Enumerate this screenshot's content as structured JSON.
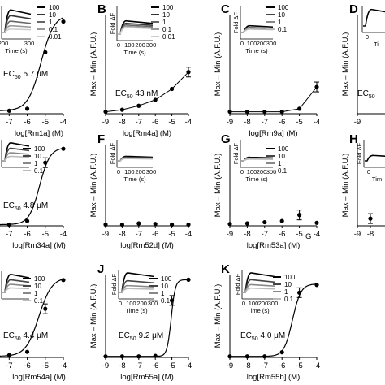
{
  "chart_data": [
    {
      "type": "line",
      "panel_letter": "",
      "xlabel": "log[Rm1a] (M)",
      "ylabel": "",
      "xlim": [
        -7.6,
        -4
      ],
      "ylim": [
        0,
        1
      ],
      "ticks": [
        "-7",
        "-6",
        "-5",
        "-4"
      ],
      "ec50": "5.7 μM",
      "points": [
        {
          "x": -7,
          "y": 0.03
        },
        {
          "x": -6,
          "y": 0.05
        },
        {
          "x": -5,
          "y": 0.62
        },
        {
          "x": -4,
          "y": 0.93
        }
      ],
      "error_index": [],
      "curve": {
        "top": 1.0,
        "bottom": 0.03,
        "logec50": -5.24,
        "hill": 1.2
      },
      "inset": {
        "legend": [
          "100",
          "10",
          "1",
          "0.1",
          "0.01"
        ],
        "series": [
          {
            "level": 1.0,
            "shade": "#000000"
          },
          {
            "level": 0.75,
            "shade": "#333333"
          },
          {
            "level": 0.5,
            "shade": "#666666"
          },
          {
            "level": 0.3,
            "shade": "#999999"
          },
          {
            "level": 0.15,
            "shade": "#cccccc"
          }
        ],
        "xticks": [
          "200",
          "300"
        ],
        "xlabel": "Time (s)",
        "ylabel": ""
      }
    },
    {
      "type": "line",
      "panel_letter": "B",
      "xlabel": "log[Rm4a] (M)",
      "ylabel": "Max – Min (A.F.U.)",
      "xlim": [
        -9,
        -4
      ],
      "ylim": [
        0,
        1
      ],
      "ticks": [
        "-9",
        "-8",
        "-7",
        "-6",
        "-5",
        "-4"
      ],
      "ec50": "43 nM",
      "points": [
        {
          "x": -9,
          "y": 0.02
        },
        {
          "x": -8,
          "y": 0.04
        },
        {
          "x": -7,
          "y": 0.08
        },
        {
          "x": -6,
          "y": 0.14
        },
        {
          "x": -5,
          "y": 0.25
        },
        {
          "x": -4,
          "y": 0.42
        }
      ],
      "error_index": [
        5
      ],
      "curve": null,
      "inset": {
        "legend": [
          "100",
          "10",
          "1",
          "0.1",
          "0.01"
        ],
        "series": [
          {
            "level": 0.55,
            "shade": "#000000"
          },
          {
            "level": 0.45,
            "shade": "#333333"
          },
          {
            "level": 0.38,
            "shade": "#666666"
          },
          {
            "level": 0.32,
            "shade": "#999999"
          },
          {
            "level": 0.28,
            "shade": "#cccccc"
          }
        ],
        "xticks": [
          "0",
          "100",
          "200",
          "300"
        ],
        "xlabel": "Time (s)",
        "ylabel": "Fold ΔF"
      }
    },
    {
      "type": "line",
      "panel_letter": "C",
      "xlabel": "log[Rm9a] (M)",
      "ylabel": "Max – Min (A.F.U.)",
      "xlim": [
        -9,
        -4
      ],
      "ylim": [
        0,
        1
      ],
      "ticks": [
        "-9",
        "-8",
        "-7",
        "-6",
        "-5",
        "-4"
      ],
      "ec50": "",
      "points": [
        {
          "x": -9,
          "y": 0.02
        },
        {
          "x": -8,
          "y": 0.02
        },
        {
          "x": -7,
          "y": 0.02
        },
        {
          "x": -6,
          "y": 0.02
        },
        {
          "x": -5,
          "y": 0.05
        },
        {
          "x": -4,
          "y": 0.27
        }
      ],
      "error_index": [
        5
      ],
      "curve": null,
      "inset": {
        "legend": [
          "100",
          "10",
          "1",
          "0.1"
        ],
        "series": [
          {
            "level": 0.3,
            "shade": "#000000"
          },
          {
            "level": 0.22,
            "shade": "#444444"
          },
          {
            "level": 0.18,
            "shade": "#888888"
          },
          {
            "level": 0.15,
            "shade": "#bbbbbb"
          }
        ],
        "xticks": [
          "0",
          "100",
          "200",
          "300"
        ],
        "xlabel": "Time (s)",
        "ylabel": "Fold ΔF"
      }
    },
    {
      "type": "line",
      "panel_letter": "D",
      "xlabel": "",
      "ylabel": "Max – Min (A.F.U.)",
      "xlim": [
        -9,
        -4
      ],
      "ylim": [
        0,
        1
      ],
      "ticks": [
        "-9"
      ],
      "ec50": "",
      "points": [],
      "error_index": [],
      "curve": null,
      "inset": {
        "legend": [],
        "series": [
          {
            "level": 1.0,
            "shade": "#000000"
          }
        ],
        "xticks": [
          "0"
        ],
        "xlabel": "Ti",
        "ylabel": ""
      }
    },
    {
      "type": "line",
      "panel_letter": "",
      "xlabel": "log[Rm34a] (M)",
      "ylabel": "",
      "xlim": [
        -7.6,
        -4
      ],
      "ylim": [
        0,
        1.35
      ],
      "ticks": [
        "-7",
        "-6",
        "-5",
        "-4"
      ],
      "ec50": "4.8 μM",
      "points": [
        {
          "x": -7,
          "y": 0.02
        },
        {
          "x": -6,
          "y": 0.08
        },
        {
          "x": -5,
          "y": 1.05
        },
        {
          "x": -4,
          "y": 1.28
        }
      ],
      "error_index": [
        2
      ],
      "curve": {
        "top": 1.3,
        "bottom": 0.02,
        "logec50": -5.32,
        "hill": 1.5
      },
      "inset": {
        "legend": [
          "100",
          "10",
          "1",
          "0.1"
        ],
        "series": [
          {
            "level": 1.0,
            "shade": "#000000"
          },
          {
            "level": 0.7,
            "shade": "#444444"
          },
          {
            "level": 0.45,
            "shade": "#888888"
          },
          {
            "level": 0.25,
            "shade": "#bbbbbb"
          }
        ],
        "xticks": [],
        "xlabel": "",
        "ylabel": ""
      }
    },
    {
      "type": "scatter",
      "panel_letter": "F",
      "xlabel": "log[Rm52d] (M)",
      "ylabel": "Max – Min (A.F.U.)",
      "xlim": [
        -9,
        -4
      ],
      "ylim": [
        0,
        1.35
      ],
      "ticks": [
        "-9",
        "-8",
        "-7",
        "-6",
        "-5",
        "-4"
      ],
      "ec50": "",
      "points": [
        {
          "x": -9,
          "y": 0.02
        },
        {
          "x": -8,
          "y": 0.02
        },
        {
          "x": -7,
          "y": 0.04
        },
        {
          "x": -6,
          "y": 0.03
        },
        {
          "x": -5,
          "y": 0.02
        },
        {
          "x": -4,
          "y": 0.02
        }
      ],
      "error_index": [],
      "curve": null,
      "inset": {
        "legend": [
          "100",
          "10",
          "1",
          "0.1"
        ],
        "series": [
          {
            "level": 0.25,
            "shade": "#000000"
          },
          {
            "level": 0.2,
            "shade": "#444444"
          },
          {
            "level": 0.16,
            "shade": "#888888"
          },
          {
            "level": 0.13,
            "shade": "#bbbbbb"
          }
        ],
        "xticks": [
          "0",
          "100",
          "200",
          "300"
        ],
        "xlabel": "Time (s)",
        "ylabel": "Fold ΔF"
      }
    },
    {
      "type": "scatter",
      "panel_letter": "G",
      "xlabel": "log[Rm53a] (M)",
      "ylabel": "Max – Min (A.F.U.)",
      "xlim": [
        -9,
        -4
      ],
      "ylim": [
        0,
        1.35
      ],
      "ticks": [
        "-9",
        "-8",
        "-7",
        "-6",
        "-5",
        "-4"
      ],
      "ec50": "",
      "points": [
        {
          "x": -9,
          "y": 0.03
        },
        {
          "x": -8,
          "y": 0.04
        },
        {
          "x": -7,
          "y": 0.06
        },
        {
          "x": -6,
          "y": 0.08
        },
        {
          "x": -5,
          "y": 0.18
        },
        {
          "x": -4,
          "y": 0.05
        }
      ],
      "error_index": [
        4
      ],
      "curve": null,
      "inset": {
        "legend": [
          "100",
          "10",
          "1",
          "0.1"
        ],
        "series": [
          {
            "level": 0.2,
            "shade": "#000000"
          },
          {
            "level": 0.16,
            "shade": "#444444"
          },
          {
            "level": 0.13,
            "shade": "#888888"
          },
          {
            "level": 0.1,
            "shade": "#bbbbbb"
          }
        ],
        "xticks": [
          "0",
          "100",
          "200",
          "300"
        ],
        "xlabel": "Time (s)",
        "ylabel": "Fold ΔF"
      },
      "extra_label": "G"
    },
    {
      "type": "scatter",
      "panel_letter": "H",
      "xlabel": "",
      "ylabel": "Max – Min (A.F.U.)",
      "xlim": [
        -9,
        -4
      ],
      "ylim": [
        0,
        1.35
      ],
      "ticks": [
        "-9",
        "-8"
      ],
      "ec50": "",
      "points": [
        {
          "x": -8,
          "y": 0.12
        }
      ],
      "error_index": [
        0
      ],
      "curve": null,
      "inset": {
        "legend": [],
        "series": [
          {
            "level": 0.3,
            "shade": "#000000"
          }
        ],
        "xticks": [
          "0"
        ],
        "xlabel": "Tim",
        "ylabel": "Fold ΔF"
      }
    },
    {
      "type": "line",
      "panel_letter": "",
      "xlabel": "log[Rm54a] (M)",
      "ylabel": "",
      "xlim": [
        -7.6,
        -4
      ],
      "ylim": [
        0,
        1.5
      ],
      "ticks": [
        "-7",
        "-6",
        "-5",
        "-4"
      ],
      "ec50": "4.4 μM",
      "points": [
        {
          "x": -7,
          "y": 0.04
        },
        {
          "x": -6,
          "y": 0.1
        },
        {
          "x": -5,
          "y": 0.88
        },
        {
          "x": -4,
          "y": 1.4
        }
      ],
      "error_index": [
        2
      ],
      "curve": {
        "top": 1.45,
        "bottom": 0.02,
        "logec50": -5.36,
        "hill": 1.2
      },
      "inset": {
        "legend": [
          "100",
          "10",
          "1",
          "0.1"
        ],
        "series": [
          {
            "level": 1.0,
            "shade": "#000000"
          },
          {
            "level": 0.7,
            "shade": "#444444"
          },
          {
            "level": 0.45,
            "shade": "#888888"
          },
          {
            "level": 0.25,
            "shade": "#bbbbbb"
          }
        ],
        "xticks": [],
        "xlabel": "",
        "ylabel": ""
      }
    },
    {
      "type": "line",
      "panel_letter": "J",
      "xlabel": "log[Rm55a] (M)",
      "ylabel": "Max – Min (A.F.U.)",
      "xlim": [
        -9,
        -4
      ],
      "ylim": [
        0,
        1.6
      ],
      "ticks": [
        "-9",
        "-8",
        "-7",
        "-6",
        "-5",
        "-4"
      ],
      "ec50": "9.2 μM",
      "points": [
        {
          "x": -9,
          "y": 0.02
        },
        {
          "x": -8,
          "y": 0.02
        },
        {
          "x": -7,
          "y": 0.02
        },
        {
          "x": -6,
          "y": 0.03
        },
        {
          "x": -5,
          "y": 1.1
        },
        {
          "x": -4,
          "y": 1.5
        }
      ],
      "error_index": [
        4
      ],
      "curve": {
        "top": 1.5,
        "bottom": 0.02,
        "logec50": -5.04,
        "hill": 3.5
      },
      "inset": {
        "legend": [
          "100",
          "10",
          "1",
          "0.1"
        ],
        "series": [
          {
            "level": 1.0,
            "shade": "#000000"
          },
          {
            "level": 0.6,
            "shade": "#444444"
          },
          {
            "level": 0.35,
            "shade": "#888888"
          },
          {
            "level": 0.2,
            "shade": "#bbbbbb"
          }
        ],
        "xticks": [
          "0",
          "100",
          "200",
          "300"
        ],
        "xlabel": "Time (s)",
        "ylabel": "Fold ΔF"
      }
    },
    {
      "type": "line",
      "panel_letter": "K",
      "xlabel": "log[Rm55b] (M)",
      "ylabel": "Max – Min (A.F.U.)",
      "xlim": [
        -9,
        -4
      ],
      "ylim": [
        0,
        1.6
      ],
      "ticks": [
        "-9",
        "-8",
        "-7",
        "-6",
        "-5",
        "-4"
      ],
      "ec50": "4.0 μM",
      "points": [
        {
          "x": -9,
          "y": 0.02
        },
        {
          "x": -8,
          "y": 0.02
        },
        {
          "x": -7,
          "y": 0.02
        },
        {
          "x": -6,
          "y": 0.1
        },
        {
          "x": -5,
          "y": 1.25
        },
        {
          "x": -4,
          "y": 1.4
        }
      ],
      "error_index": [
        4
      ],
      "curve": {
        "top": 1.42,
        "bottom": 0.02,
        "logec50": -5.4,
        "hill": 1.8
      },
      "inset": {
        "legend": [
          "100",
          "10",
          "1",
          "0.1"
        ],
        "series": [
          {
            "level": 1.0,
            "shade": "#000000"
          },
          {
            "level": 0.65,
            "shade": "#444444"
          },
          {
            "level": 0.4,
            "shade": "#888888"
          },
          {
            "level": 0.22,
            "shade": "#bbbbbb"
          }
        ],
        "xticks": [
          "0",
          "100",
          "200",
          "300"
        ],
        "xlabel": "Time (s)",
        "ylabel": "Fold ΔF"
      }
    }
  ]
}
